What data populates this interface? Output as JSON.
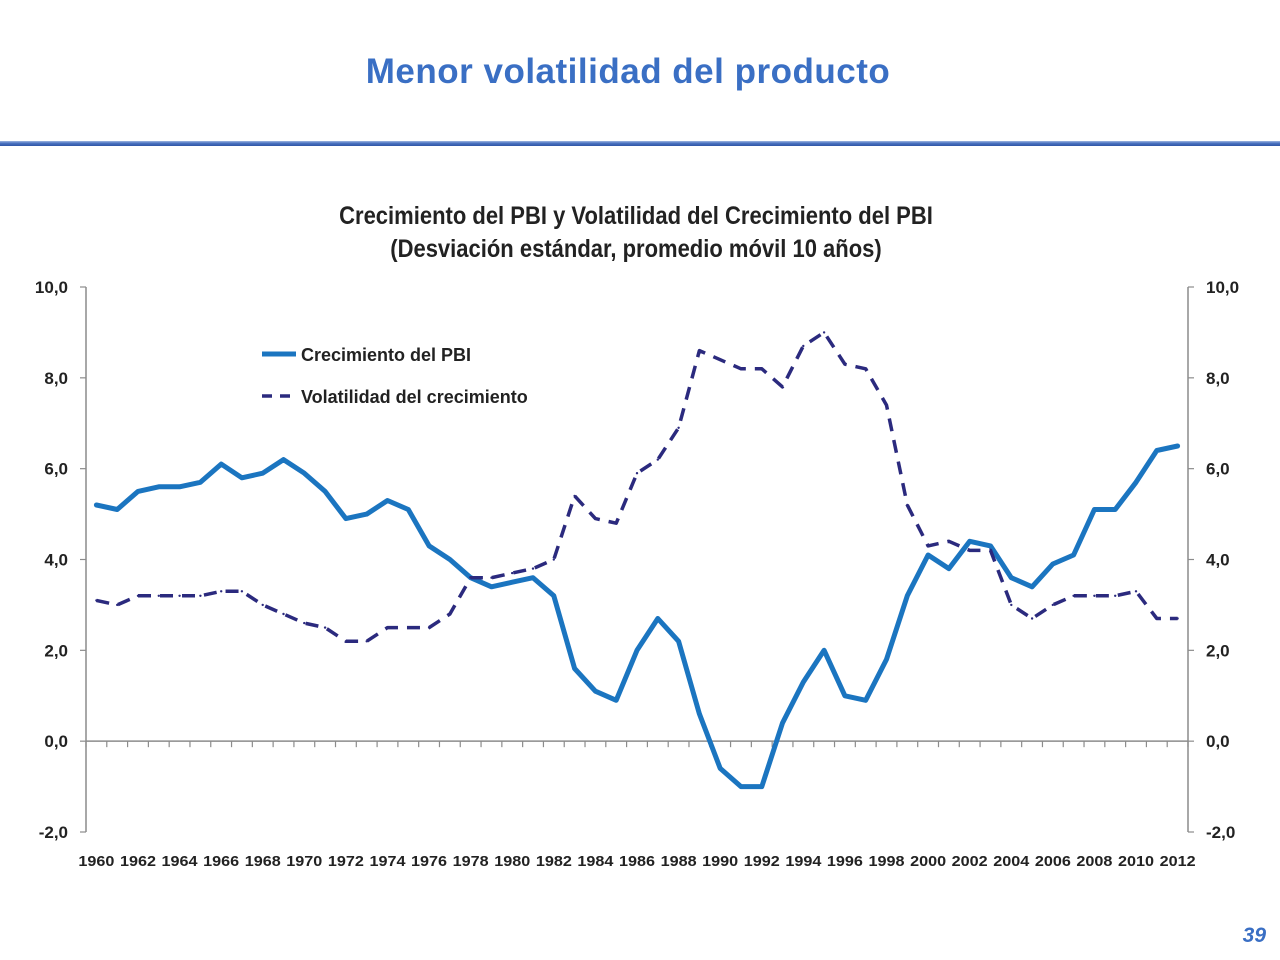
{
  "slide": {
    "title": "Menor volatilidad del producto",
    "page_number": "39"
  },
  "colors": {
    "title": "#3A6FC4",
    "rule": "#2F56A6",
    "series_pbi": "#1B75C0",
    "series_vol": "#2B2A7E"
  },
  "chart_data": {
    "type": "line",
    "title": "Crecimiento del PBI y Volatilidad del Crecimiento del PBI",
    "subtitle": "(Desviación estándar, promedio móvil 10 años)",
    "xlabel": "",
    "ylabel": "",
    "ylim": [
      -2,
      10
    ],
    "y_ticks": [
      "-2,0",
      "0,0",
      "2,0",
      "4,0",
      "6,0",
      "8,0",
      "10,0"
    ],
    "y2lim": [
      -2,
      10
    ],
    "y2_ticks": [
      "-2,0",
      "0,0",
      "2,0",
      "4,0",
      "6,0",
      "8,0",
      "10,0"
    ],
    "x_tick_labels": [
      "1960",
      "1962",
      "1964",
      "1966",
      "1968",
      "1970",
      "1972",
      "1974",
      "1976",
      "1978",
      "1980",
      "1982",
      "1984",
      "1986",
      "1988",
      "1990",
      "1992",
      "1994",
      "1996",
      "1998",
      "2000",
      "2002",
      "2004",
      "2006",
      "2008",
      "2010",
      "2012"
    ],
    "grid": false,
    "legend": "top-left",
    "x": [
      1960,
      1961,
      1962,
      1963,
      1964,
      1965,
      1966,
      1967,
      1968,
      1969,
      1970,
      1971,
      1972,
      1973,
      1974,
      1975,
      1976,
      1977,
      1978,
      1979,
      1980,
      1981,
      1982,
      1983,
      1984,
      1985,
      1986,
      1987,
      1988,
      1989,
      1990,
      1991,
      1992,
      1993,
      1994,
      1995,
      1996,
      1997,
      1998,
      1999,
      2000,
      2001,
      2002,
      2003,
      2004,
      2005,
      2006,
      2007,
      2008,
      2009,
      2010,
      2011,
      2012
    ],
    "series": [
      {
        "name": "Crecimiento del PBI",
        "style": "solid",
        "axis": "left",
        "values": [
          5.2,
          5.1,
          5.5,
          5.6,
          5.6,
          5.7,
          6.1,
          5.8,
          5.9,
          6.2,
          5.9,
          5.5,
          4.9,
          5.0,
          5.3,
          5.1,
          4.3,
          4.0,
          3.6,
          3.4,
          3.5,
          3.6,
          3.2,
          1.6,
          1.1,
          0.9,
          2.0,
          2.7,
          2.2,
          0.6,
          -0.6,
          -1.0,
          -1.0,
          0.4,
          1.3,
          2.0,
          1.0,
          0.9,
          1.8,
          3.2,
          4.1,
          3.8,
          4.4,
          4.3,
          3.6,
          3.4,
          3.9,
          4.1,
          5.1,
          5.1,
          5.7,
          6.4,
          6.5
        ]
      },
      {
        "name": "Volatilidad del crecimiento",
        "style": "dashed",
        "axis": "right",
        "values": [
          3.1,
          3.0,
          3.2,
          3.2,
          3.2,
          3.2,
          3.3,
          3.3,
          3.0,
          2.8,
          2.6,
          2.5,
          2.2,
          2.2,
          2.5,
          2.5,
          2.5,
          2.8,
          3.6,
          3.6,
          3.7,
          3.8,
          4.0,
          5.4,
          4.9,
          4.8,
          5.9,
          6.2,
          6.9,
          8.6,
          8.4,
          8.2,
          8.2,
          7.8,
          8.7,
          9.0,
          8.3,
          8.2,
          7.4,
          5.2,
          4.3,
          4.4,
          4.2,
          4.2,
          3.0,
          2.7,
          3.0,
          3.2,
          3.2,
          3.2,
          3.3,
          2.7,
          2.7
        ]
      }
    ]
  }
}
